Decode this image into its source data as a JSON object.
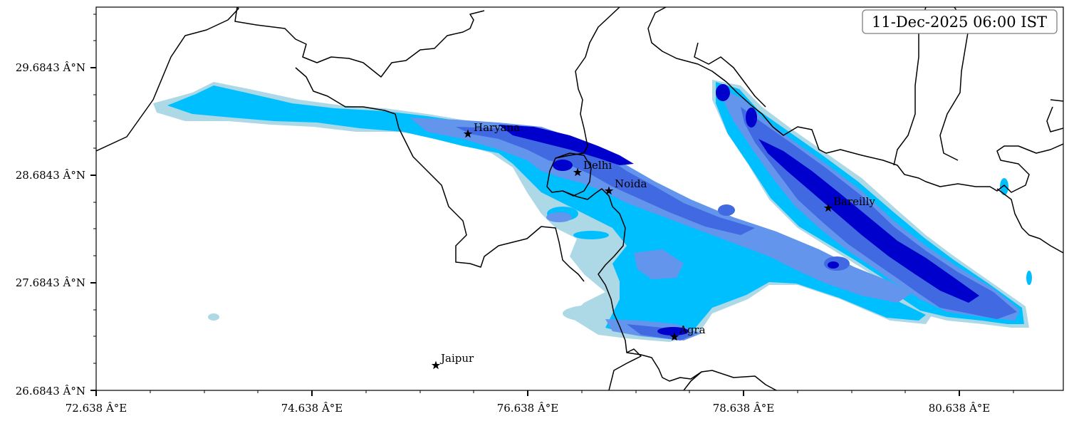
{
  "timestamp": "11-Dec-2025 06:00 IST",
  "axes": {
    "x_ticks": [
      "72.638 Â°E",
      "74.638 Â°E",
      "76.638 Â°E",
      "78.638 Â°E",
      "80.638 Â°E"
    ],
    "y_ticks": [
      "29.6843 Â°N",
      "28.6843 Â°N",
      "27.6843 Â°N",
      "26.6843 Â°N"
    ]
  },
  "cities": [
    {
      "name": "Haryana"
    },
    {
      "name": "Delhi"
    },
    {
      "name": "Noida"
    },
    {
      "name": "Bareilly"
    },
    {
      "name": "Agra"
    },
    {
      "name": "Jaipur"
    }
  ],
  "colors": {
    "level_1": "#add8e6",
    "level_2": "#00bfff",
    "level_3": "#6495ed",
    "level_4": "#4169e1",
    "level_5": "#0000cd",
    "border": "#000000"
  }
}
